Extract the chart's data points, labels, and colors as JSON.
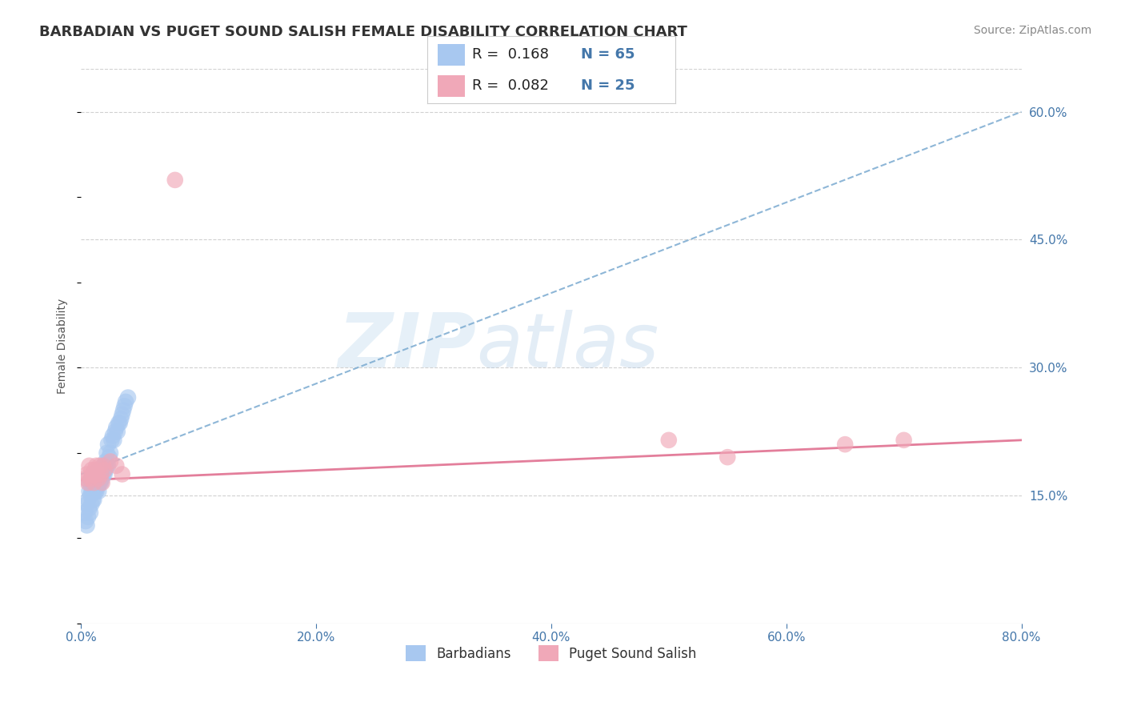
{
  "title": "BARBADIAN VS PUGET SOUND SALISH FEMALE DISABILITY CORRELATION CHART",
  "source": "Source: ZipAtlas.com",
  "ylabel": "Female Disability",
  "xlim": [
    0.0,
    0.8
  ],
  "ylim": [
    0.0,
    0.65
  ],
  "xticks": [
    0.0,
    0.2,
    0.4,
    0.6,
    0.8
  ],
  "xtick_labels": [
    "0.0%",
    "20.0%",
    "40.0%",
    "60.0%",
    "80.0%"
  ],
  "yticks_right": [
    0.15,
    0.3,
    0.45,
    0.6
  ],
  "ytick_right_labels": [
    "15.0%",
    "30.0%",
    "45.0%",
    "60.0%"
  ],
  "grid_color": "#cccccc",
  "background_color": "#ffffff",
  "legend_R1": "0.168",
  "legend_N1": "65",
  "legend_R2": "0.082",
  "legend_N2": "25",
  "series1_color": "#a8c8f0",
  "series2_color": "#f0a8b8",
  "trendline1_color": "#7aaad0",
  "trendline2_color": "#e07090",
  "title_color": "#333333",
  "label_color": "#4477aa",
  "series1_label": "Barbadians",
  "series2_label": "Puget Sound Salish",
  "barbadians_x": [
    0.003,
    0.004,
    0.005,
    0.005,
    0.006,
    0.006,
    0.007,
    0.007,
    0.007,
    0.008,
    0.008,
    0.008,
    0.009,
    0.009,
    0.009,
    0.01,
    0.01,
    0.01,
    0.01,
    0.011,
    0.011,
    0.011,
    0.012,
    0.012,
    0.012,
    0.013,
    0.013,
    0.013,
    0.014,
    0.014,
    0.015,
    0.015,
    0.015,
    0.016,
    0.016,
    0.017,
    0.017,
    0.018,
    0.018,
    0.019,
    0.019,
    0.02,
    0.02,
    0.021,
    0.021,
    0.022,
    0.022,
    0.023,
    0.023,
    0.024,
    0.025,
    0.026,
    0.027,
    0.028,
    0.029,
    0.03,
    0.031,
    0.032,
    0.033,
    0.034,
    0.035,
    0.036,
    0.037,
    0.038,
    0.04
  ],
  "barbadians_y": [
    0.13,
    0.12,
    0.115,
    0.14,
    0.125,
    0.145,
    0.135,
    0.155,
    0.165,
    0.13,
    0.15,
    0.165,
    0.14,
    0.155,
    0.17,
    0.145,
    0.155,
    0.165,
    0.175,
    0.145,
    0.16,
    0.17,
    0.155,
    0.165,
    0.175,
    0.155,
    0.165,
    0.175,
    0.16,
    0.175,
    0.155,
    0.165,
    0.18,
    0.165,
    0.175,
    0.165,
    0.175,
    0.17,
    0.18,
    0.175,
    0.185,
    0.175,
    0.185,
    0.18,
    0.19,
    0.185,
    0.2,
    0.185,
    0.21,
    0.195,
    0.2,
    0.215,
    0.22,
    0.215,
    0.225,
    0.23,
    0.225,
    0.235,
    0.235,
    0.24,
    0.245,
    0.25,
    0.255,
    0.26,
    0.265
  ],
  "puget_x": [
    0.004,
    0.005,
    0.006,
    0.007,
    0.008,
    0.009,
    0.01,
    0.011,
    0.012,
    0.013,
    0.014,
    0.015,
    0.016,
    0.017,
    0.018,
    0.019,
    0.02,
    0.025,
    0.03,
    0.035,
    0.5,
    0.55,
    0.65,
    0.7,
    0.08
  ],
  "puget_y": [
    0.17,
    0.175,
    0.165,
    0.185,
    0.17,
    0.18,
    0.175,
    0.165,
    0.18,
    0.185,
    0.175,
    0.17,
    0.185,
    0.175,
    0.165,
    0.185,
    0.18,
    0.19,
    0.185,
    0.175,
    0.215,
    0.195,
    0.21,
    0.215,
    0.52
  ],
  "trendline1_x0": 0.0,
  "trendline1_y0": 0.175,
  "trendline1_x1": 0.8,
  "trendline1_y1": 0.6,
  "trendline2_x0": 0.0,
  "trendline2_y0": 0.168,
  "trendline2_x1": 0.8,
  "trendline2_y1": 0.215
}
